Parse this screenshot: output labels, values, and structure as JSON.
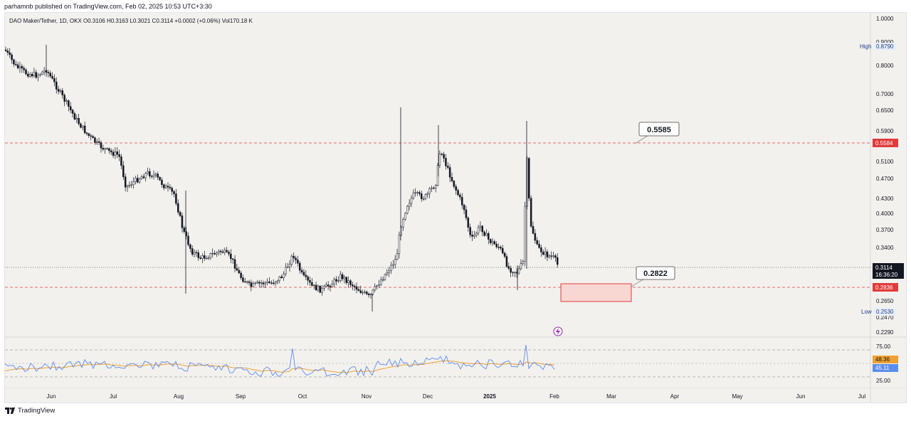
{
  "header": {
    "published": "parhamnb published on TradingView.com, Feb 02, 2025 10:53 UTC+3:30"
  },
  "legend": {
    "text": "DAO Maker/Tether, 1D, OKX  O0.3106  H0.3163  L0.3021  C0.3114  +0.0002 (+0.06%)  Vol170.18 K"
  },
  "price_axis": {
    "ticks": [
      "1.0000",
      "0.9000",
      "0.8000",
      "0.7000",
      "0.6500",
      "0.5900",
      "0.5100",
      "0.4700",
      "0.4300",
      "0.4000",
      "0.3700",
      "0.3400",
      "0.2650",
      "0.2470",
      "0.2290"
    ],
    "high_label": "High",
    "high_value": "0.8790",
    "low_label": "Low",
    "low_value": "0.2530",
    "resistance_value": "0.5584",
    "support_value": "0.2836",
    "current_price": "0.3114",
    "countdown": "16:36:20"
  },
  "annotations": {
    "resistance_callout": "0.5585",
    "support_callout": "0.2822"
  },
  "rsi": {
    "ticks": [
      "75.00",
      "25.00"
    ],
    "ma_value": "48.36",
    "rsi_value": "45.11"
  },
  "time_axis": [
    "Jun",
    "Jul",
    "Aug",
    "Sep",
    "Oct",
    "Nov",
    "Dec",
    "2025",
    "Feb",
    "Mar",
    "Apr",
    "May",
    "Jun",
    "Jul"
  ],
  "footer": {
    "brand": "TradingView"
  },
  "colors": {
    "background": "#f3f1ee",
    "candle": "#131722",
    "resistance": "#e03b3b",
    "zone_fill": "#f8d7d3",
    "rsi_line": "#5b8def",
    "rsi_ma": "#f0a030",
    "current_price_bg": "#131722",
    "high_low_text": "#1e3a8a"
  },
  "icons": {
    "event_marker": "lightning-icon"
  }
}
